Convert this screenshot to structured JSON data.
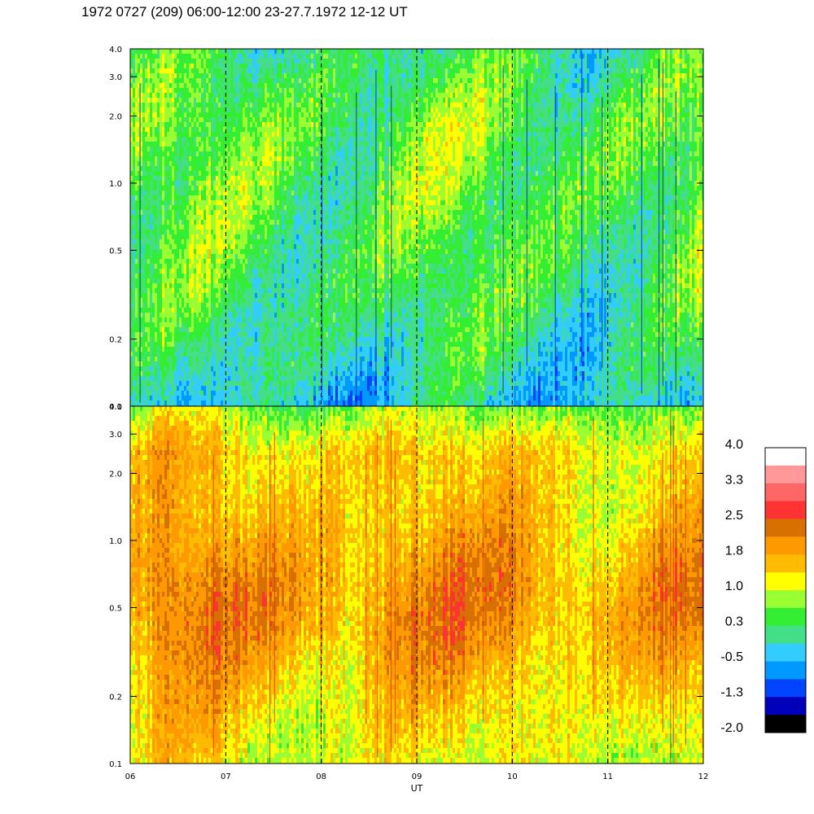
{
  "title": "1972 0727 (209) 06:00-12:00 23-27.7.1972  12-12 UT",
  "chart_data": {
    "type": "heatmap",
    "xlabel": "UT",
    "x_ticks": [
      "06",
      "07",
      "08",
      "09",
      "10",
      "11",
      "12"
    ],
    "xlim": [
      6,
      12
    ],
    "dashed_vlines": [
      7,
      8,
      9,
      10,
      11
    ],
    "grid": false,
    "panels": [
      {
        "y_scale": "log",
        "ylim": [
          0.1,
          4.0
        ],
        "y_ticks": [
          "0.1",
          "0.2",
          "0.5",
          "1.0",
          "2.0",
          "3.0",
          "4.0"
        ],
        "value_range": [
          -1.0,
          1.2
        ],
        "character": "green/cyan dominated, blue streaks near top and bottom"
      },
      {
        "y_scale": "log",
        "ylim": [
          0.1,
          4.0
        ],
        "y_ticks": [
          "0.1",
          "0.2",
          "0.5",
          "1.0",
          "2.0",
          "3.0",
          "4.0"
        ],
        "value_range": [
          0.0,
          2.4
        ],
        "character": "yellow/orange dominated, green near top"
      }
    ],
    "colorbar": {
      "tick_labels": [
        "4.0",
        "3.3",
        "2.5",
        "1.8",
        "1.0",
        "0.3",
        "-0.5",
        "-1.3",
        "-2.0"
      ],
      "colors_top_to_bottom": [
        "#ffffff",
        "#ff9999",
        "#ff6666",
        "#ff3333",
        "#d87000",
        "#ff9900",
        "#ffbb00",
        "#ffff00",
        "#99ff33",
        "#33ee33",
        "#44dd88",
        "#33ccff",
        "#0099ff",
        "#0044ff",
        "#0000bb",
        "#000000"
      ]
    }
  }
}
